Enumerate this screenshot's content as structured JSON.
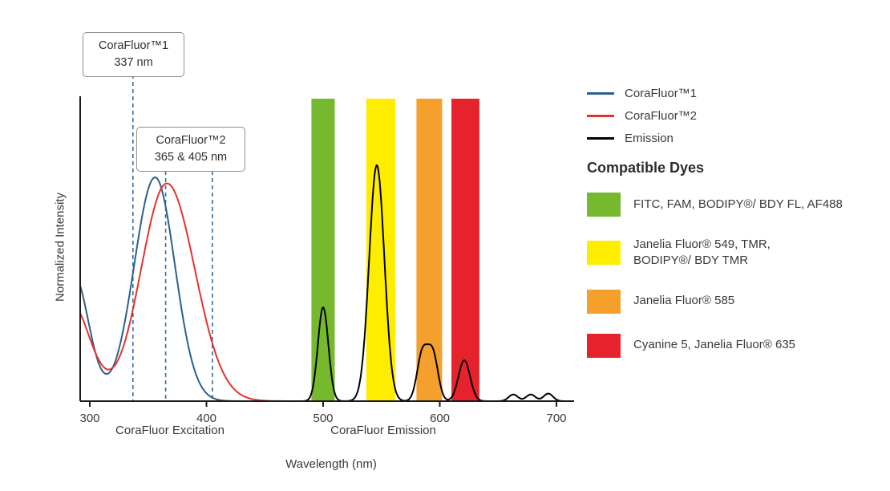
{
  "chart_data": {
    "type": "line",
    "xlabel": "Wavelength (nm)",
    "ylabel": "Normalized Intensity",
    "xlim": [
      292,
      715
    ],
    "ylim": [
      0,
      1
    ],
    "x_ticks": [
      300,
      400,
      500,
      600,
      700
    ],
    "grid": false,
    "legend_position": "right",
    "axis_section_labels": [
      {
        "text": "CoraFluor Excitation",
        "center_nm": 369
      },
      {
        "text": "CoraFluor Emission",
        "center_nm": 551
      }
    ],
    "callouts": [
      {
        "line1": "CoraFluor™1",
        "line2": "337 nm",
        "lines_nm": [
          337
        ]
      },
      {
        "line1": "CoraFluor™2",
        "line2": "365 & 405 nm",
        "lines_nm": [
          365,
          405
        ]
      }
    ],
    "bands": [
      {
        "name": "green",
        "color": "#76b82e",
        "from_nm": 490,
        "to_nm": 510
      },
      {
        "name": "yellow",
        "color": "#ffed00",
        "from_nm": 537,
        "to_nm": 562
      },
      {
        "name": "orange",
        "color": "#f5a02d",
        "from_nm": 580,
        "to_nm": 602
      },
      {
        "name": "red",
        "color": "#e6232d",
        "from_nm": 610,
        "to_nm": 634
      }
    ],
    "series": [
      {
        "key": "corafluor1-excitation",
        "name": "CoraFluor™1",
        "role": "excitation",
        "color": "#2a618c",
        "components": [
          {
            "center": 286,
            "height": 0.42,
            "sigma": 13
          },
          {
            "center": 356,
            "height": 0.74,
            "sigma_left": 18,
            "sigma_right": 17
          }
        ]
      },
      {
        "key": "corafluor2-excitation",
        "name": "CoraFluor™2",
        "role": "excitation",
        "color": "#e6312e",
        "components": [
          {
            "center": 283,
            "height": 0.33,
            "sigma": 17
          },
          {
            "center": 366,
            "height": 0.72,
            "sigma_left": 22,
            "sigma_right": 24
          }
        ]
      },
      {
        "key": "emission",
        "name": "Emission",
        "role": "emission",
        "color": "#000000",
        "components": [
          {
            "center": 500,
            "height": 0.31,
            "sigma": 4.5
          },
          {
            "center": 546,
            "height": 0.78,
            "sigma": 6.5
          },
          {
            "center": 585,
            "height": 0.155,
            "sigma": 4.5
          },
          {
            "center": 594,
            "height": 0.155,
            "sigma": 4.5
          },
          {
            "center": 621,
            "height": 0.135,
            "sigma": 5
          },
          {
            "center": 663,
            "height": 0.022,
            "sigma": 4
          },
          {
            "center": 678,
            "height": 0.022,
            "sigma": 4
          },
          {
            "center": 693,
            "height": 0.025,
            "sigma": 4
          }
        ]
      }
    ]
  },
  "legend": {
    "series": [
      {
        "label": "CoraFluor™1",
        "color": "#2a618c"
      },
      {
        "label": "CoraFluor™2",
        "color": "#e6312e"
      },
      {
        "label": "Emission",
        "color": "#000000"
      }
    ],
    "compatible_dyes_title": "Compatible Dyes",
    "dyes": [
      {
        "color": "#76b82e",
        "label": "FITC, FAM, BODIPY®/ BDY FL, AF488"
      },
      {
        "color": "#ffed00",
        "label": "Janelia Fluor® 549, TMR,\nBODIPY®/ BDY TMR"
      },
      {
        "color": "#f5a02d",
        "label": "Janelia Fluor® 585"
      },
      {
        "color": "#e6232d",
        "label": "Cyanine 5, Janelia Fluor® 635"
      }
    ]
  }
}
